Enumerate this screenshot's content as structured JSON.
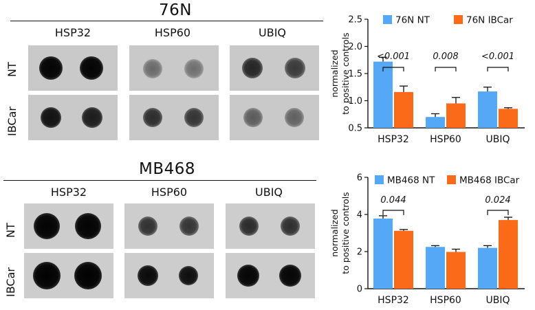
{
  "blots": [
    {
      "title": "76N",
      "columns": [
        "HSP32",
        "HSP60",
        "UBIQ"
      ],
      "rows": [
        "NT",
        "IBCar"
      ]
    },
    {
      "title": "MB468",
      "columns": [
        "HSP32",
        "HSP60",
        "UBIQ"
      ],
      "rows": [
        "NT",
        "IBCar"
      ]
    }
  ],
  "chart_data": [
    {
      "type": "bar",
      "categories": [
        "HSP32",
        "HSP60",
        "UBIQ"
      ],
      "series": [
        {
          "name": "76N NT",
          "color": "#55a8f5",
          "values": [
            1.72,
            0.7,
            1.17
          ],
          "errors": [
            0.08,
            0.06,
            0.08
          ]
        },
        {
          "name": "76N IBCar",
          "color": "#fa6a18",
          "values": [
            1.16,
            0.95,
            0.85
          ],
          "errors": [
            0.11,
            0.11,
            0.02
          ]
        }
      ],
      "ylabel": "normalized\nto positive controls",
      "ylim": [
        0.5,
        2.5
      ],
      "yticks": [
        "0.5",
        "1.0",
        "1.5",
        "2.0",
        "2.5"
      ],
      "annotations": [
        "<0.001",
        "0.008",
        "<0.001"
      ],
      "legend": "top"
    },
    {
      "type": "bar",
      "categories": [
        "HSP32",
        "HSP60",
        "UBIQ"
      ],
      "series": [
        {
          "name": "MB468 NT",
          "color": "#55a8f5",
          "values": [
            3.78,
            2.25,
            2.2
          ],
          "errors": [
            0.15,
            0.07,
            0.12
          ]
        },
        {
          "name": "MB468 IBCar",
          "color": "#fa6a18",
          "values": [
            3.12,
            1.98,
            3.7
          ],
          "errors": [
            0.07,
            0.15,
            0.15
          ]
        }
      ],
      "ylabel": "normalized\nto positive controls",
      "ylim": [
        0,
        6
      ],
      "yticks": [
        "0",
        "2",
        "4",
        "6"
      ],
      "annotations": [
        "0.044",
        "",
        "0.024"
      ],
      "legend": "top"
    }
  ]
}
